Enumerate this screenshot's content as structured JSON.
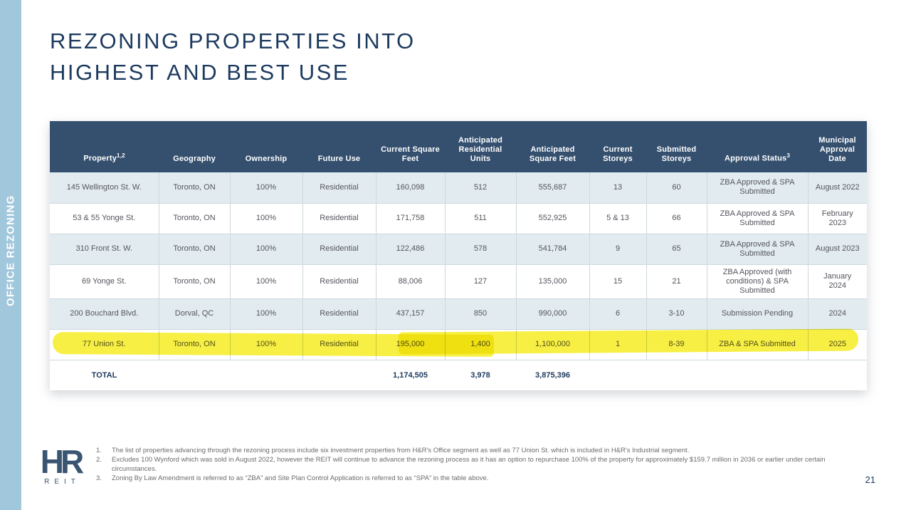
{
  "slide": {
    "title_line1": "REZONING PROPERTIES INTO",
    "title_line2": "HIGHEST AND BEST USE",
    "sidebar_label": "OFFICE REZONING",
    "page_number": "21",
    "logo_text": "HR",
    "logo_subtext": "REIT"
  },
  "colors": {
    "sidebar_blue": "#a1c7dc",
    "header_navy": "#35506f",
    "title_navy": "#1c3a5e",
    "row_light_blue": "#e2ecf0",
    "highlight_yellow": "#f6ee2e",
    "body_text_grey": "#55555e"
  },
  "table": {
    "column_keys": [
      "property",
      "geography",
      "ownership",
      "future-use",
      "current-square-feet",
      "anticipated-residential-units",
      "anticipated-square-feet",
      "current-storeys",
      "submitted-storeys",
      "approval-status",
      "municipal-approval-date"
    ],
    "columns": [
      {
        "label": "Property",
        "sup": "1,2"
      },
      {
        "label": "Geography",
        "sup": ""
      },
      {
        "label": "Ownership",
        "sup": ""
      },
      {
        "label": "Future Use",
        "sup": ""
      },
      {
        "label": "Current Square Feet",
        "sup": ""
      },
      {
        "label": "Anticipated Residential Units",
        "sup": ""
      },
      {
        "label": "Anticipated Square Feet",
        "sup": ""
      },
      {
        "label": "Current Storeys",
        "sup": ""
      },
      {
        "label": "Submitted Storeys",
        "sup": ""
      },
      {
        "label": "Approval Status",
        "sup": "3"
      },
      {
        "label": "Municipal Approval Date",
        "sup": ""
      }
    ],
    "rows": [
      [
        "145 Wellington St. W.",
        "Toronto, ON",
        "100%",
        "Residential",
        "160,098",
        "512",
        "555,687",
        "13",
        "60",
        "ZBA Approved & SPA Submitted",
        "August 2022"
      ],
      [
        "53 & 55 Yonge St.",
        "Toronto, ON",
        "100%",
        "Residential",
        "171,758",
        "511",
        "552,925",
        "5 & 13",
        "66",
        "ZBA Approved & SPA Submitted",
        "February 2023"
      ],
      [
        "310 Front St. W.",
        "Toronto, ON",
        "100%",
        "Residential",
        "122,486",
        "578",
        "541,784",
        "9",
        "65",
        "ZBA Approved & SPA Submitted",
        "August 2023"
      ],
      [
        "69 Yonge St.",
        "Toronto, ON",
        "100%",
        "Residential",
        "88,006",
        "127",
        "135,000",
        "15",
        "21",
        "ZBA Approved (with conditions) & SPA Submitted",
        "January 2024"
      ],
      [
        "200 Bouchard Blvd.",
        "Dorval, QC",
        "100%",
        "Residential",
        "437,157",
        "850",
        "990,000",
        "6",
        "3-10",
        "Submission Pending",
        "2024"
      ],
      [
        "77 Union St.",
        "Toronto, ON",
        "100%",
        "Residential",
        "195,000",
        "1,400",
        "1,100,000",
        "1",
        "8-39",
        "ZBA & SPA Submitted",
        "2025"
      ]
    ],
    "highlighted_row_index": 5,
    "total": {
      "label": "TOTAL",
      "current_square_feet": "1,174,505",
      "anticipated_residential_units": "3,978",
      "anticipated_square_feet": "3,875,396"
    }
  },
  "footnotes": [
    {
      "num": "1.",
      "text": "The list of properties advancing through the rezoning process include six investment properties from H&R's Office segment as well as 77 Union St. which is included in H&R's Industrial segment."
    },
    {
      "num": "2.",
      "text": "Excludes 100 Wynford which was sold in August 2022, however the REIT will continue to advance  the rezoning process as it has an option to repurchase 100% of the property for approximately $159.7 million in 2036 or earlier under certain circumstances."
    },
    {
      "num": "3.",
      "text": "Zoning By Law Amendment is referred to as “ZBA” and Site Plan Control Application is referred to as “SPA” in the table above."
    }
  ]
}
